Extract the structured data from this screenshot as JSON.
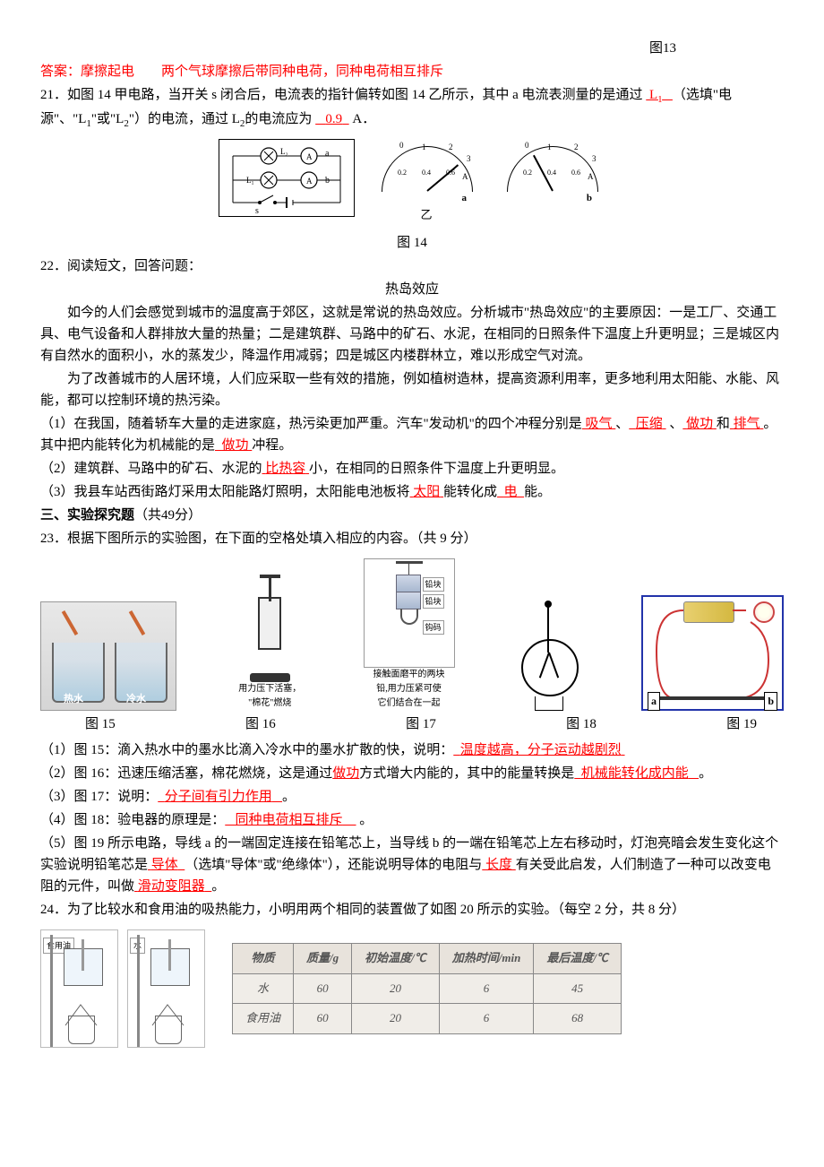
{
  "header": {
    "fig13": "图13"
  },
  "ans20": {
    "prefix": "答案：",
    "a1": "摩擦起电",
    "a2": "两个气球摩擦后带同种电荷，同种电荷相互排斥"
  },
  "q21": {
    "text_a": "21．如图 14 甲电路，当开关 s 闭合后，电流表的指针偏转如图 14 乙所示，其中 a 电流表测量的是通过",
    "blank1": "L",
    "blank1_sub": "1",
    "text_b": "（选填\"电源\"、\"L",
    "sub1": "1",
    "text_c": "\"或\"L",
    "sub2": "2",
    "text_d": "\"）的电流，通过 L",
    "sub3": "2",
    "text_e": "的电流应为 ",
    "blank2": "0.9",
    "text_f": " A．",
    "caption": "图 14",
    "meter_a": "a",
    "meter_b": "b",
    "meter_yi": "乙",
    "scale1": "0",
    "scale2": "1",
    "scale3": "2",
    "scale4": "3",
    "scale5": "0.2",
    "scale6": "0.4",
    "scale7": "0.6",
    "unit": "A"
  },
  "q22": {
    "num": "22．阅读短文，回答问题：",
    "title": "热岛效应",
    "p1": "如今的人们会感觉到城市的温度高于郊区，这就是常说的热岛效应。分析城市\"热岛效应\"的主要原因：一是工厂、交通工具、电气设备和人群排放大量的热量；二是建筑群、马路中的矿石、水泥，在相同的日照条件下温度上升更明显；三是城区内有自然水的面积小，水的蒸发少，降温作用减弱；四是城区内楼群林立，难以形成空气对流。",
    "p2": "为了改善城市的人居环境，人们应采取一些有效的措施，例如植树造林，提高资源利用率，更多地利用太阳能、水能、风能，都可以控制环境的热污染。",
    "s1a": "（1）在我国，随着轿车大量的走进家庭，热污染更加严重。汽车\"发动机\"的四个冲程分别是",
    "b1": "吸气",
    "s1b": "、",
    "b2": "压缩",
    "s1c": " 、",
    "b3": "做功",
    "s1d": "和",
    "b4": "排气",
    "s1e": "。其中把内能转化为机械能的是",
    "b5": "做功",
    "s1f": "冲程。",
    "s2a": "（2）建筑群、马路中的矿石、水泥的",
    "b6": "比热容",
    "s2b": "小，在相同的日照条件下温度上升更明显。",
    "s3a": "（3）我县车站西街路灯采用太阳能路灯照明，太阳能电池板将",
    "b7": "太阳",
    "s3b": "能转化成",
    "b8": "电",
    "s3c": "能。"
  },
  "sec3": {
    "title": "三、实验探究题",
    "score": "（共49分）"
  },
  "q23": {
    "num": "23．根据下图所示的实验图，在下面的空格处填入相应的内容。（共 9 分）",
    "hot": "热水",
    "cold": "冷水",
    "piston1": "用力压下活塞，",
    "piston2": "\"棉花\"燃烧",
    "lead1": "铅块",
    "lead2": "铅块",
    "lead3": "钩码",
    "lead_t1": "接触面磨平的两块",
    "lead_t2": "铅,用力压紧可使",
    "lead_t3": "它们结合在一起",
    "a": "a",
    "b": "b",
    "cap15": "图 15",
    "cap16": "图 16",
    "cap17": "图 17",
    "cap18": "图 18",
    "cap19": "图 19",
    "s1a": "（1）图 15：滴入热水中的墨水比滴入冷水中的墨水扩散的快，说明：",
    "b1": "温度越高，分子运动越剧烈",
    "s2a": "（2）图 16：迅速压缩活塞，棉花燃烧，这是通过",
    "b2": "做功",
    "s2b": "方式增大内能的，其中的能量转换是",
    "b3": "机械能转化成内能",
    "s2c": "。",
    "s3a": "（3）图 17：说明：",
    "b4": "分子间有引力作用",
    "s3b": "。",
    "s4a": "（4）图 18：验电器的原理是：",
    "b5": "同种电荷相互排斥",
    "s4b": " 。",
    "s5a": "（5）图 19 所示电路，导线 a 的一端固定连接在铅笔芯上，当导线 b 的一端在铅笔芯上左右移动时，灯泡亮暗会发生变化这个实验说明铅笔芯是",
    "b6": "导体",
    "s5b": "（选填\"导体\"或\"绝缘体\"），还能说明导体的电阻与",
    "b7": "长度",
    "s5c": "有关受此启发，人们制造了一种可以改变电阻的元件，叫做",
    "b8": "滑动变阻器",
    "s5d": "。"
  },
  "q24": {
    "num": "24．为了比较水和食用油的吸热能力，小明用两个相同的装置做了如图 20 所示的实验。（每空 2 分，共 8 分）",
    "lbl_oil": "食用油",
    "lbl_water": "水",
    "table": {
      "headers": [
        "物质",
        "质量/g",
        "初始温度/℃",
        "加热时间/min",
        "最后温度/℃"
      ],
      "rows": [
        [
          "水",
          "60",
          "20",
          "6",
          "45"
        ],
        [
          "食用油",
          "60",
          "20",
          "6",
          "68"
        ]
      ]
    }
  },
  "colors": {
    "red": "#ff0000",
    "black": "#000000",
    "table_bg": "#f0ede8",
    "table_border": "#888888"
  }
}
